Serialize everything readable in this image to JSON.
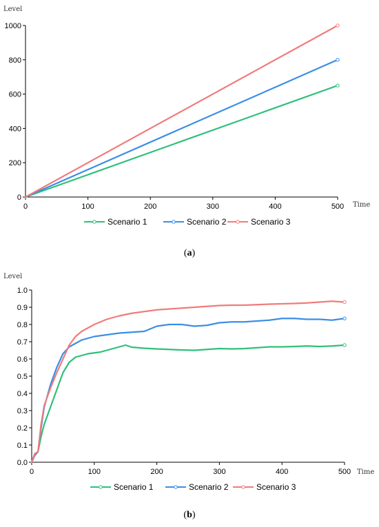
{
  "chart_data": [
    {
      "type": "line",
      "ylabel": "Level",
      "xlabel": "Time",
      "xlim": [
        0,
        500
      ],
      "ylim": [
        0,
        1000
      ],
      "xticks": [
        0,
        100,
        200,
        300,
        400,
        500
      ],
      "yticks": [
        0,
        200,
        400,
        600,
        800,
        1000
      ],
      "legend_position": "bottom",
      "caption": "a",
      "series": [
        {
          "name": "Scenario 1",
          "color": "#2fbf7a",
          "x": [
            0,
            500
          ],
          "y": [
            0,
            650
          ]
        },
        {
          "name": "Scenario 2",
          "color": "#3a8ee6",
          "x": [
            0,
            500
          ],
          "y": [
            0,
            800
          ]
        },
        {
          "name": "Scenario 3",
          "color": "#f07b7b",
          "x": [
            0,
            500
          ],
          "y": [
            0,
            1000
          ]
        }
      ]
    },
    {
      "type": "line",
      "ylabel": "Level",
      "xlabel": "Time",
      "xlim": [
        0,
        500
      ],
      "ylim": [
        0,
        1.0
      ],
      "xticks": [
        0,
        100,
        200,
        300,
        400,
        500
      ],
      "yticks": [
        0.0,
        0.1,
        0.2,
        0.3,
        0.4,
        0.5,
        0.6,
        0.7,
        0.8,
        0.9,
        1.0
      ],
      "legend_position": "bottom",
      "caption": "b",
      "series": [
        {
          "name": "Scenario 1",
          "color": "#2fbf7a",
          "x": [
            0,
            5,
            10,
            15,
            20,
            30,
            40,
            50,
            60,
            70,
            80,
            90,
            100,
            110,
            120,
            130,
            140,
            150,
            160,
            170,
            180,
            200,
            220,
            240,
            260,
            280,
            300,
            320,
            340,
            360,
            380,
            400,
            420,
            440,
            460,
            480,
            500
          ],
          "y": [
            0.0,
            0.05,
            0.06,
            0.15,
            0.22,
            0.32,
            0.42,
            0.52,
            0.58,
            0.61,
            0.62,
            0.63,
            0.635,
            0.64,
            0.65,
            0.66,
            0.67,
            0.68,
            0.668,
            0.665,
            0.662,
            0.658,
            0.655,
            0.652,
            0.65,
            0.655,
            0.66,
            0.658,
            0.66,
            0.665,
            0.67,
            0.67,
            0.672,
            0.675,
            0.672,
            0.675,
            0.68
          ]
        },
        {
          "name": "Scenario 2",
          "color": "#3a8ee6",
          "x": [
            0,
            5,
            10,
            15,
            20,
            30,
            40,
            50,
            60,
            70,
            80,
            90,
            100,
            120,
            140,
            160,
            180,
            200,
            220,
            240,
            260,
            280,
            300,
            320,
            340,
            360,
            380,
            400,
            420,
            440,
            460,
            480,
            500
          ],
          "y": [
            0.0,
            0.04,
            0.06,
            0.2,
            0.32,
            0.45,
            0.55,
            0.63,
            0.67,
            0.69,
            0.71,
            0.72,
            0.73,
            0.74,
            0.75,
            0.755,
            0.76,
            0.79,
            0.8,
            0.8,
            0.79,
            0.795,
            0.81,
            0.815,
            0.815,
            0.82,
            0.825,
            0.835,
            0.835,
            0.83,
            0.83,
            0.825,
            0.835
          ]
        },
        {
          "name": "Scenario 3",
          "color": "#f07b7b",
          "x": [
            0,
            5,
            10,
            15,
            20,
            30,
            40,
            50,
            60,
            70,
            80,
            90,
            100,
            120,
            140,
            160,
            180,
            200,
            220,
            240,
            260,
            280,
            300,
            320,
            340,
            360,
            380,
            400,
            420,
            440,
            460,
            480,
            500
          ],
          "y": [
            0.0,
            0.05,
            0.06,
            0.22,
            0.33,
            0.43,
            0.52,
            0.6,
            0.68,
            0.73,
            0.76,
            0.78,
            0.8,
            0.83,
            0.85,
            0.865,
            0.875,
            0.885,
            0.89,
            0.895,
            0.9,
            0.905,
            0.91,
            0.912,
            0.912,
            0.915,
            0.918,
            0.92,
            0.922,
            0.925,
            0.93,
            0.935,
            0.93
          ]
        }
      ]
    }
  ]
}
